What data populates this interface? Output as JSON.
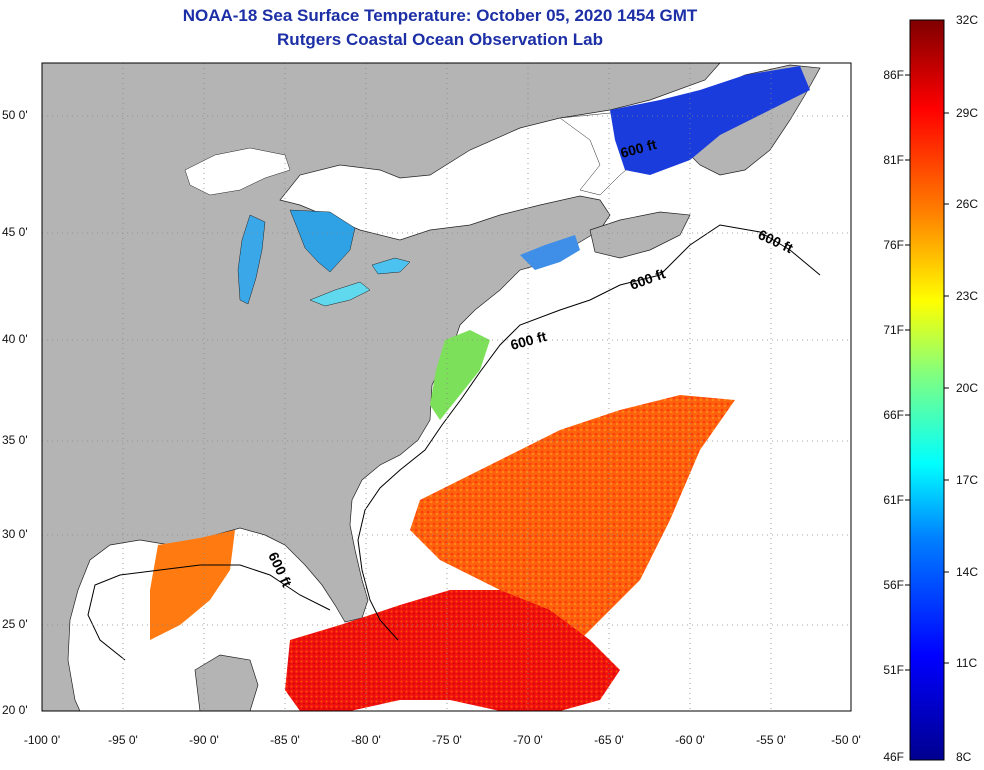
{
  "title": {
    "line1": "NOAA-18 Sea Surface Temperature:  October 05, 2020 1454 GMT",
    "line2": "Rutgers Coastal Ocean Observation Lab"
  },
  "map": {
    "lat_ticks": [
      "50 0'",
      "45 0'",
      "40 0'",
      "35 0'",
      "30 0'",
      "25 0'",
      "20 0'"
    ],
    "lon_ticks": [
      "-100 0'",
      "-95 0'",
      "-90 0'",
      "-85 0'",
      "-80 0'",
      "-75 0'",
      "-70 0'",
      "-65 0'",
      "-60 0'",
      "-55 0'",
      "-50 0'"
    ],
    "land_color": "#b4b4b4",
    "ocean_nodata_color": "#ffffff",
    "contour_labels": [
      "600 ft",
      "600 ft",
      "600 ft",
      "600 ft",
      "600 ft"
    ]
  },
  "colorbar": {
    "fahrenheit_ticks": [
      "86F",
      "81F",
      "76F",
      "71F",
      "66F",
      "61F",
      "56F",
      "51F",
      "46F"
    ],
    "celsius_ticks": [
      "32C",
      "29C",
      "26C",
      "23C",
      "20C",
      "17C",
      "14C",
      "11C",
      "8C"
    ],
    "colors": [
      "#7f0000",
      "#ff0000",
      "#ff8000",
      "#ffff00",
      "#80ff80",
      "#00ffff",
      "#0080ff",
      "#0000ff",
      "#00008f"
    ]
  }
}
